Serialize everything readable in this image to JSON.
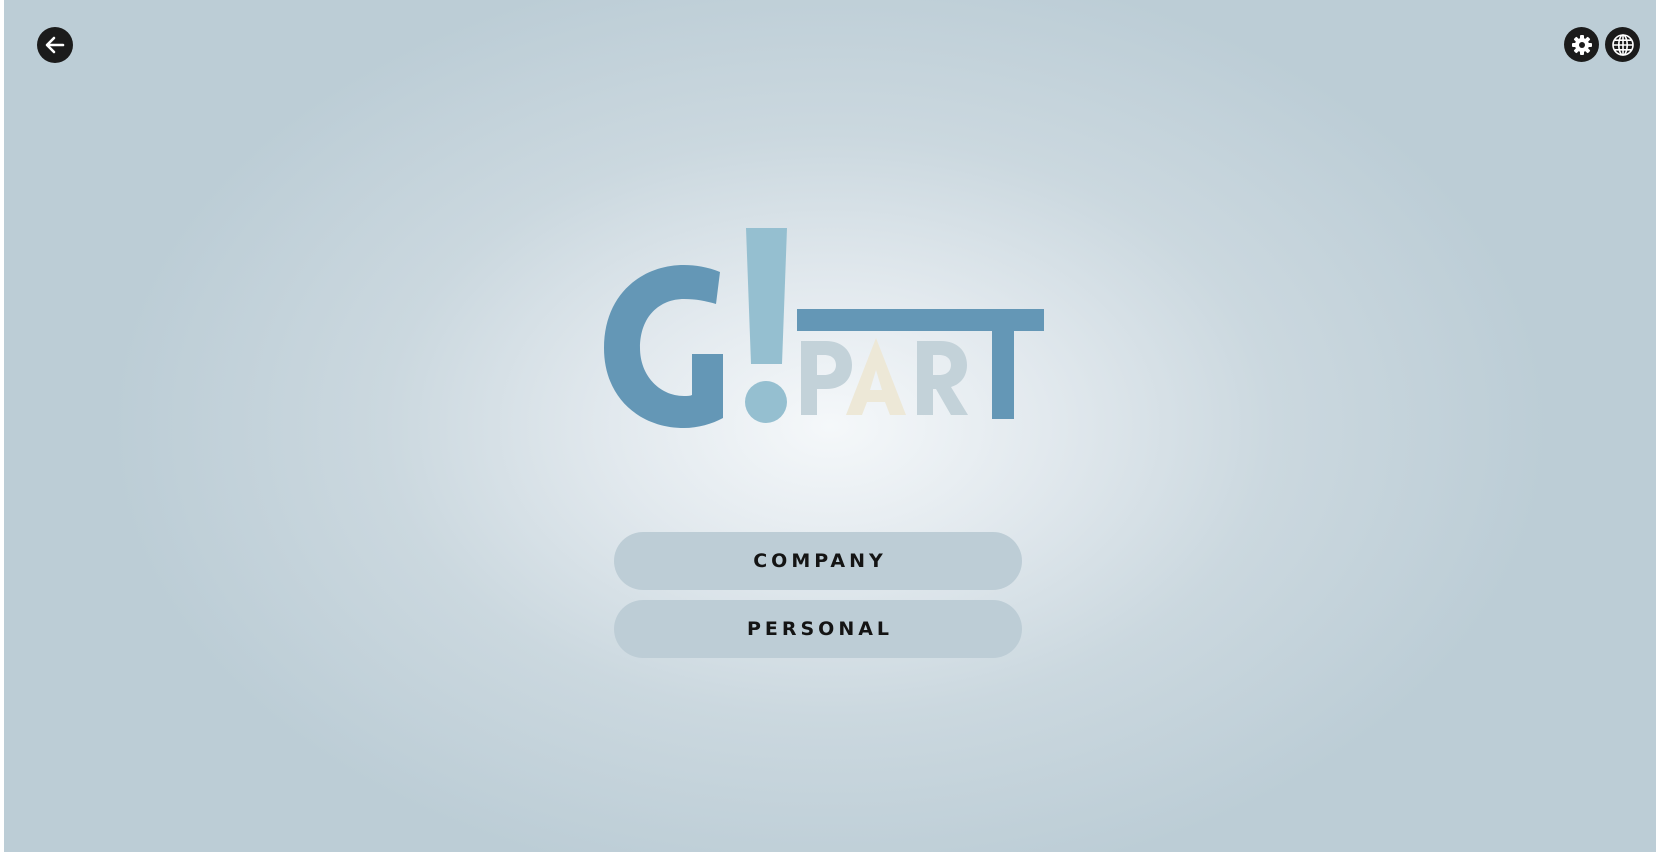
{
  "header": {
    "back_icon": "arrow-left-icon",
    "settings_icon": "gear-icon",
    "language_icon": "globe-icon"
  },
  "logo": {
    "brand_letter": "G",
    "exclamation": "!",
    "word": [
      "P",
      "A",
      "R",
      "T"
    ],
    "colors": {
      "primary": "#6497b6",
      "accent": "#95bfd0",
      "muted": "#c3d2d9",
      "cream": "#ede8d7"
    }
  },
  "menu": {
    "company_label": "COMPANY",
    "personal_label": "PERSONAL"
  },
  "colors": {
    "background_center": "#f5f8fa",
    "background_edge": "#bccdd6",
    "button_bg": "#bdcdd6",
    "button_text": "#141414",
    "icon_bg": "#1b1b1b"
  }
}
